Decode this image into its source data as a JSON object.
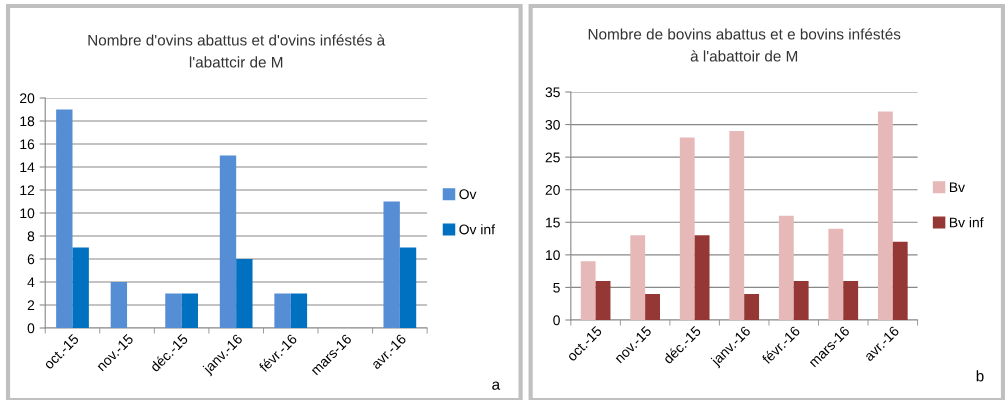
{
  "chart_data": [
    {
      "type": "bar",
      "title": "Nombre d'ovins abattus et d'ovins inféstés à\nl'abattcir de M",
      "categories": [
        "oct.-15",
        "nov.-15",
        "déc.-15",
        "janv.-16",
        "févr.-16",
        "mars-16",
        "avr.-16"
      ],
      "series": [
        {
          "name": "Ov",
          "color": "#558ed5",
          "values": [
            19,
            4,
            3,
            15,
            3,
            null,
            11
          ]
        },
        {
          "name": "Ov inf",
          "color": "#0070c0",
          "values": [
            7,
            null,
            3,
            6,
            3,
            null,
            7
          ]
        }
      ],
      "ylim": [
        0,
        20
      ],
      "yticks": [
        0,
        2,
        4,
        6,
        8,
        10,
        12,
        14,
        16,
        18,
        20
      ],
      "grid": "y",
      "legend": "right",
      "annotations": [
        "a"
      ]
    },
    {
      "type": "bar",
      "title": "Nombre de bovins abattus et e bovins inféstés\nà l'abattoir de M",
      "categories": [
        "oct.-15",
        "nov.-15",
        "déc.-15",
        "janv.-16",
        "févr.-16",
        "mars-16",
        "avr.-16"
      ],
      "series": [
        {
          "name": "Bv",
          "color": "#e6b9b8",
          "values": [
            9,
            13,
            28,
            29,
            16,
            14,
            32
          ]
        },
        {
          "name": "Bv inf",
          "color": "#953735",
          "values": [
            6,
            4,
            13,
            4,
            6,
            6,
            12
          ]
        }
      ],
      "ylim": [
        0,
        35
      ],
      "yticks": [
        0,
        5,
        10,
        15,
        20,
        25,
        30,
        35
      ],
      "grid": "y",
      "legend": "right",
      "annotations": [
        "b"
      ]
    }
  ]
}
